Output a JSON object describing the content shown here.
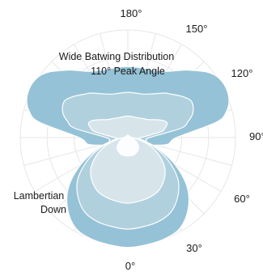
{
  "chart_data": {
    "type": "polar-area",
    "title": "",
    "angle_labels": [
      {
        "angle": 0,
        "text": "0°"
      },
      {
        "angle": 30,
        "text": "30°"
      },
      {
        "angle": 60,
        "text": "60°"
      },
      {
        "angle": 90,
        "text": "90°"
      },
      {
        "angle": 120,
        "text": "120°"
      },
      {
        "angle": 150,
        "text": "150°"
      },
      {
        "angle": 180,
        "text": "180°"
      }
    ],
    "grid": true,
    "grid_rings": [
      0.25,
      0.5,
      0.75,
      1.0
    ],
    "grid_spoke_step_deg": 15,
    "r_max": 1.0,
    "angles": [
      0,
      10,
      20,
      30,
      40,
      50,
      60,
      70,
      80,
      90,
      100,
      105,
      110,
      115,
      120,
      125,
      130,
      135,
      140,
      150,
      160,
      170,
      180
    ],
    "series": [
      {
        "group": "batwing",
        "color": "#8dbdd3",
        "values": [
          0.04,
          0.04,
          0.04,
          0.05,
          0.06,
          0.08,
          0.12,
          0.2,
          0.37,
          0.45,
          0.84,
          0.95,
          1.0,
          1.02,
          1.02,
          1.0,
          0.95,
          0.88,
          0.82,
          0.71,
          0.67,
          0.66,
          0.66
        ]
      },
      {
        "group": "batwing",
        "color": "#b2d1df",
        "values": [
          0.02,
          0.02,
          0.02,
          0.03,
          0.04,
          0.05,
          0.07,
          0.1,
          0.17,
          0.2,
          0.5,
          0.58,
          0.64,
          0.67,
          0.68,
          0.65,
          0.61,
          0.57,
          0.54,
          0.47,
          0.43,
          0.42,
          0.42
        ]
      },
      {
        "group": "batwing",
        "color": "#d9e6ec",
        "values": [
          0.01,
          0.01,
          0.01,
          0.02,
          0.02,
          0.03,
          0.04,
          0.06,
          0.09,
          0.12,
          0.31,
          0.36,
          0.39,
          0.37,
          0.33,
          0.29,
          0.26,
          0.24,
          0.23,
          0.21,
          0.2,
          0.2,
          0.2
        ]
      },
      {
        "group": "lambertian",
        "color": "#8dbdd3",
        "values": [
          1.02,
          1.01,
          1.0,
          0.97,
          0.87,
          0.72,
          0.51,
          0.3,
          0.14,
          0.04,
          0.03,
          0.02,
          0.02,
          0.02,
          0.02,
          0.02,
          0.02,
          0.02,
          0.02,
          0.02,
          0.02,
          0.02,
          0.02
        ]
      },
      {
        "group": "lambertian",
        "color": "#b2d1df",
        "values": [
          0.85,
          0.84,
          0.83,
          0.8,
          0.72,
          0.61,
          0.44,
          0.27,
          0.12,
          0.03,
          0.02,
          0.02,
          0.02,
          0.02,
          0.02,
          0.02,
          0.02,
          0.02,
          0.02,
          0.02,
          0.02,
          0.02,
          0.02
        ]
      },
      {
        "group": "lambertian",
        "color": "#d9e6ec",
        "values": [
          0.61,
          0.6,
          0.59,
          0.57,
          0.52,
          0.45,
          0.34,
          0.22,
          0.1,
          0.03,
          0.02,
          0.02,
          0.02,
          0.02,
          0.02,
          0.02,
          0.02,
          0.02,
          0.02,
          0.02,
          0.02,
          0.02,
          0.02
        ]
      },
      {
        "group": "center",
        "color": "#ffffff",
        "values": [
          0.17,
          0.17,
          0.17,
          0.16,
          0.15,
          0.13,
          0.1,
          0.07,
          0.04,
          0.02,
          0.02,
          0.02,
          0.02,
          0.02,
          0.02,
          0.02,
          0.02,
          0.02,
          0.02,
          0.02,
          0.02,
          0.02,
          0.02
        ]
      }
    ],
    "annotations": [
      {
        "text": "Wide Batwing Distribution"
      },
      {
        "text": "110° Peak Angle"
      },
      {
        "text": "Lambertian"
      },
      {
        "text": "Down"
      }
    ]
  }
}
